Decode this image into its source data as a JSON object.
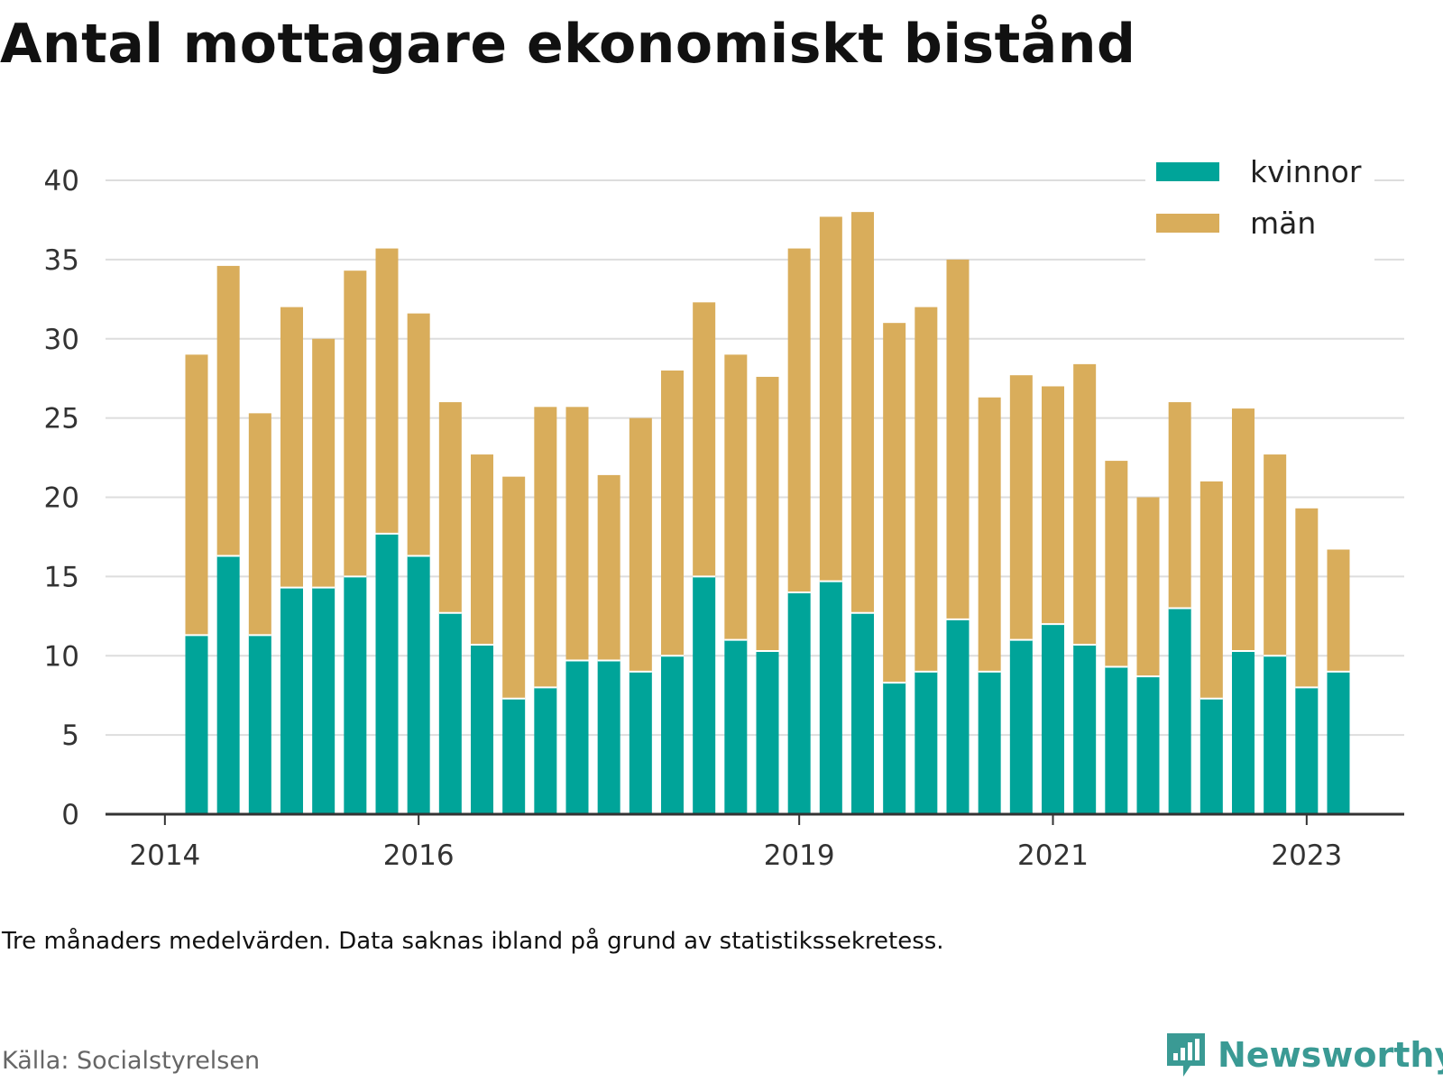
{
  "title": "Antal mottagare ekonomiskt bistånd",
  "note": "Tre månaders medelvärden. Data saknas ibland på grund av statistikssekretess.",
  "source": "Källa: Socialstyrelsen",
  "brand": "Newsworthy",
  "colors": {
    "kvinnor": "#00a499",
    "man": "#d9ad5b",
    "grid": "#dddddd",
    "axis": "#333333",
    "brand": "#3a9a94"
  },
  "chart_data": {
    "type": "bar",
    "stacked": true,
    "ylim": [
      0,
      40
    ],
    "yticks": [
      0,
      5,
      10,
      15,
      20,
      25,
      30,
      35,
      40
    ],
    "xticks": [
      "2014",
      "2016",
      "2019",
      "2021",
      "2023"
    ],
    "legend_placement": "top-right",
    "grid": true,
    "categories": [
      "2014 Q2",
      "2014 Q3",
      "2014 Q4",
      "2015 Q1",
      "2015 Q2",
      "2015 Q3",
      "2015 Q4",
      "2016 Q1",
      "2016 Q2",
      "2016 Q3",
      "2016 Q4",
      "2017 Q1",
      "2017 Q2",
      "2017 Q3",
      "2017 Q4",
      "2018 Q1",
      "2018 Q2",
      "2018 Q3",
      "2018 Q4",
      "2019 Q1",
      "2019 Q2",
      "2019 Q3",
      "2019 Q4",
      "2020 Q1",
      "2020 Q2",
      "2020 Q3",
      "2020 Q4",
      "2021 Q1",
      "2021 Q2",
      "2021 Q3",
      "2021 Q4",
      "2022 Q1",
      "2022 Q2",
      "2022 Q3",
      "2022 Q4",
      "2023 Q1",
      "2023 Q2"
    ],
    "series": [
      {
        "name": "kvinnor",
        "values": [
          11.3,
          16.3,
          11.3,
          14.3,
          14.3,
          15.0,
          17.7,
          16.3,
          12.7,
          10.7,
          7.3,
          8.0,
          9.7,
          9.7,
          9.0,
          10.0,
          15.0,
          11.0,
          10.3,
          14.0,
          14.7,
          12.7,
          8.3,
          9.0,
          12.3,
          9.0,
          11.0,
          12.0,
          10.7,
          9.3,
          8.7,
          13.0,
          7.3,
          10.3,
          10.0,
          8.0,
          9.0
        ]
      },
      {
        "name": "män",
        "values": [
          17.7,
          18.3,
          14.0,
          17.7,
          15.7,
          19.3,
          18.0,
          15.3,
          13.3,
          12.0,
          14.0,
          17.7,
          16.0,
          11.7,
          16.0,
          18.0,
          17.3,
          18.0,
          17.3,
          21.7,
          23.0,
          25.3,
          22.7,
          23.0,
          22.7,
          17.3,
          16.7,
          15.0,
          17.7,
          13.0,
          11.3,
          13.0,
          13.7,
          15.3,
          12.7,
          11.3,
          7.7
        ]
      }
    ]
  }
}
